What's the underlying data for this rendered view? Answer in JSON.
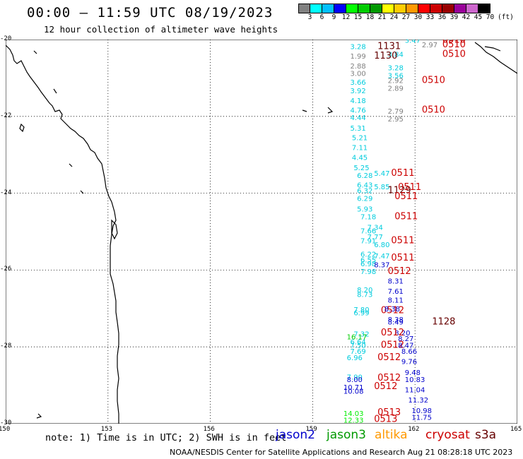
{
  "title": "00:00 – 11:59 UTC 08/19/2023",
  "subtitle": "12 hour collection of altimeter wave heights",
  "legend": {
    "colors": [
      "#808080",
      "#00ffff",
      "#00c0ff",
      "#0000ff",
      "#00ff00",
      "#00cc00",
      "#009900",
      "#ffff00",
      "#ffcc00",
      "#ff9900",
      "#ff0000",
      "#cc0000",
      "#990000",
      "#990099",
      "#cc66cc",
      "#000000"
    ],
    "labels": [
      "3",
      "6",
      "9",
      "12",
      "15",
      "18",
      "21",
      "24",
      "27",
      "30",
      "33",
      "36",
      "39",
      "42",
      "45",
      "70"
    ],
    "unit": "(ft)"
  },
  "axes": {
    "lat_labels": [
      "-20",
      "-22",
      "-24",
      "-26",
      "-28",
      "-30"
    ],
    "lon_labels": [
      "150",
      "153",
      "156",
      "159",
      "162",
      "165"
    ]
  },
  "footer": {
    "note": "note: 1) Time is in UTC; 2) SWH is in feet",
    "credit": "NOAA/NESDIS Center for Satellite Applications and Research   Aug 21 08:28:18 UTC 2023",
    "satellites": [
      {
        "name": "jason2",
        "color": "#0000cc"
      },
      {
        "name": "jason3",
        "color": "#009900"
      },
      {
        "name": "altika",
        "color": "#ff9900"
      },
      {
        "name": "cryosat",
        "color": "#cc0000"
      },
      {
        "name": "s3a",
        "color": "#660000"
      }
    ]
  },
  "chart_data": {
    "type": "scatter",
    "xlim": [
      150,
      165
    ],
    "ylim": [
      -30,
      -20
    ],
    "grid": true,
    "labels": [
      {
        "lon": 161.7,
        "lat": -20.08,
        "text": "3.47",
        "color": "#00ccdd"
      },
      {
        "lon": 162.2,
        "lat": -20.2,
        "text": "2.97",
        "color": "#808080"
      },
      {
        "lon": 162.8,
        "lat": -20.08,
        "text": "0510",
        "color": "#cc0000"
      },
      {
        "lon": 162.8,
        "lat": -20.2,
        "text": "0510",
        "color": "#cc0000"
      },
      {
        "lon": 160.1,
        "lat": -20.25,
        "text": "3.28",
        "color": "#00ccdd"
      },
      {
        "lon": 160.9,
        "lat": -20.25,
        "text": "1131",
        "color": "#660000"
      },
      {
        "lon": 161.2,
        "lat": -20.45,
        "text": "3.84",
        "color": "#00ccdd"
      },
      {
        "lon": 160.1,
        "lat": -20.5,
        "text": "1.99",
        "color": "#808080"
      },
      {
        "lon": 160.8,
        "lat": -20.5,
        "text": "1130",
        "color": "#660000"
      },
      {
        "lon": 162.8,
        "lat": -20.45,
        "text": "0510",
        "color": "#cc0000"
      },
      {
        "lon": 160.1,
        "lat": -20.75,
        "text": "2.88",
        "color": "#808080"
      },
      {
        "lon": 161.2,
        "lat": -20.8,
        "text": "3.28",
        "color": "#00ccdd"
      },
      {
        "lon": 160.1,
        "lat": -20.95,
        "text": "3.00",
        "color": "#808080"
      },
      {
        "lon": 161.2,
        "lat": -21.0,
        "text": "3.56",
        "color": "#00ccdd"
      },
      {
        "lon": 160.1,
        "lat": -21.18,
        "text": "3.66",
        "color": "#00ccdd"
      },
      {
        "lon": 161.2,
        "lat": -21.13,
        "text": "2.92",
        "color": "#808080"
      },
      {
        "lon": 162.2,
        "lat": -21.13,
        "text": "0510",
        "color": "#cc0000"
      },
      {
        "lon": 160.1,
        "lat": -21.4,
        "text": "3.92",
        "color": "#00ccdd"
      },
      {
        "lon": 161.2,
        "lat": -21.33,
        "text": "2.89",
        "color": "#808080"
      },
      {
        "lon": 160.1,
        "lat": -21.65,
        "text": "4.18",
        "color": "#00ccdd"
      },
      {
        "lon": 160.1,
        "lat": -21.9,
        "text": "4.76",
        "color": "#00ccdd"
      },
      {
        "lon": 161.2,
        "lat": -21.93,
        "text": "2.79",
        "color": "#808080"
      },
      {
        "lon": 162.2,
        "lat": -21.9,
        "text": "0510",
        "color": "#cc0000"
      },
      {
        "lon": 160.1,
        "lat": -22.1,
        "text": "4.44",
        "color": "#00ccdd"
      },
      {
        "lon": 161.2,
        "lat": -22.13,
        "text": "2.95",
        "color": "#808080"
      },
      {
        "lon": 160.1,
        "lat": -22.37,
        "text": "5.31",
        "color": "#00ccdd"
      },
      {
        "lon": 160.15,
        "lat": -22.62,
        "text": "5.21",
        "color": "#00ccdd"
      },
      {
        "lon": 160.15,
        "lat": -22.88,
        "text": "7.11",
        "color": "#00ccdd"
      },
      {
        "lon": 160.15,
        "lat": -23.13,
        "text": "4.45",
        "color": "#00ccdd"
      },
      {
        "lon": 160.2,
        "lat": -23.4,
        "text": "5.25",
        "color": "#00ccdd"
      },
      {
        "lon": 160.3,
        "lat": -23.6,
        "text": "6.28",
        "color": "#00ccdd"
      },
      {
        "lon": 160.8,
        "lat": -23.55,
        "text": "5.47",
        "color": "#00ccdd"
      },
      {
        "lon": 161.3,
        "lat": -23.55,
        "text": "0511",
        "color": "#cc0000"
      },
      {
        "lon": 160.3,
        "lat": -23.85,
        "text": "6.43",
        "color": "#00ccdd"
      },
      {
        "lon": 160.8,
        "lat": -23.9,
        "text": "5.85",
        "color": "#00ccdd"
      },
      {
        "lon": 160.3,
        "lat": -24.0,
        "text": "6.32",
        "color": "#00ccdd"
      },
      {
        "lon": 161.2,
        "lat": -24.0,
        "text": "1129",
        "color": "#660000"
      },
      {
        "lon": 161.5,
        "lat": -23.92,
        "text": "0511",
        "color": "#cc0000"
      },
      {
        "lon": 161.4,
        "lat": -24.15,
        "text": "0511",
        "color": "#cc0000"
      },
      {
        "lon": 160.3,
        "lat": -24.2,
        "text": "6.29",
        "color": "#00ccdd"
      },
      {
        "lon": 160.3,
        "lat": -24.48,
        "text": "5.93",
        "color": "#00ccdd"
      },
      {
        "lon": 160.4,
        "lat": -24.68,
        "text": "7.18",
        "color": "#00ccdd"
      },
      {
        "lon": 161.4,
        "lat": -24.68,
        "text": "0511",
        "color": "#cc0000"
      },
      {
        "lon": 160.6,
        "lat": -24.95,
        "text": "7.34",
        "color": "#00ccdd"
      },
      {
        "lon": 160.4,
        "lat": -25.05,
        "text": "7.66",
        "color": "#00ccdd"
      },
      {
        "lon": 160.6,
        "lat": -25.2,
        "text": "7.77",
        "color": "#00ccdd"
      },
      {
        "lon": 161.3,
        "lat": -25.3,
        "text": "0511",
        "color": "#cc0000"
      },
      {
        "lon": 160.4,
        "lat": -25.3,
        "text": "7.91",
        "color": "#00ccdd"
      },
      {
        "lon": 160.8,
        "lat": -25.4,
        "text": "6.80",
        "color": "#00ccdd"
      },
      {
        "lon": 160.4,
        "lat": -25.65,
        "text": "6.22",
        "color": "#00ccdd"
      },
      {
        "lon": 160.8,
        "lat": -25.7,
        "text": "7.47",
        "color": "#00ccdd"
      },
      {
        "lon": 160.4,
        "lat": -25.8,
        "text": "6.55",
        "color": "#00ccdd"
      },
      {
        "lon": 161.3,
        "lat": -25.75,
        "text": "0511",
        "color": "#cc0000"
      },
      {
        "lon": 160.4,
        "lat": -25.9,
        "text": "6.98",
        "color": "#00ccdd"
      },
      {
        "lon": 160.8,
        "lat": -25.93,
        "text": "8.37",
        "color": "#0000cc"
      },
      {
        "lon": 160.4,
        "lat": -26.1,
        "text": "7.98",
        "color": "#00ccdd"
      },
      {
        "lon": 161.2,
        "lat": -26.1,
        "text": "0512",
        "color": "#cc0000"
      },
      {
        "lon": 161.2,
        "lat": -26.35,
        "text": "8.31",
        "color": "#0000cc"
      },
      {
        "lon": 160.3,
        "lat": -26.58,
        "text": "8.20",
        "color": "#00ccdd"
      },
      {
        "lon": 161.2,
        "lat": -26.62,
        "text": "7.61",
        "color": "#0000cc"
      },
      {
        "lon": 160.3,
        "lat": -26.7,
        "text": "8.73",
        "color": "#00ccdd"
      },
      {
        "lon": 161.2,
        "lat": -26.85,
        "text": "8.11",
        "color": "#0000cc"
      },
      {
        "lon": 160.2,
        "lat": -27.1,
        "text": "7.80",
        "color": "#00ccdd"
      },
      {
        "lon": 160.2,
        "lat": -27.18,
        "text": "6.99",
        "color": "#00ccdd"
      },
      {
        "lon": 161.0,
        "lat": -27.12,
        "text": "0512",
        "color": "#cc0000"
      },
      {
        "lon": 161.1,
        "lat": -27.08,
        "text": "8.38",
        "color": "#0000cc"
      },
      {
        "lon": 161.2,
        "lat": -27.35,
        "text": "8.38",
        "color": "#0000cc"
      },
      {
        "lon": 161.2,
        "lat": -27.42,
        "text": "8.49",
        "color": "#0000cc"
      },
      {
        "lon": 162.5,
        "lat": -27.42,
        "text": "1128",
        "color": "#660000"
      },
      {
        "lon": 160.2,
        "lat": -27.73,
        "text": "7.32",
        "color": "#00ccdd"
      },
      {
        "lon": 161.4,
        "lat": -27.7,
        "text": "8.20",
        "color": "#0000cc"
      },
      {
        "lon": 160.0,
        "lat": -27.8,
        "text": "16.17",
        "color": "#00cc00"
      },
      {
        "lon": 161.0,
        "lat": -27.7,
        "text": "0512",
        "color": "#cc0000"
      },
      {
        "lon": 161.5,
        "lat": -27.85,
        "text": "8.27",
        "color": "#0000cc"
      },
      {
        "lon": 160.1,
        "lat": -27.93,
        "text": "6.64",
        "color": "#00ccdd"
      },
      {
        "lon": 160.1,
        "lat": -28.02,
        "text": "7.50",
        "color": "#00ccdd"
      },
      {
        "lon": 161.0,
        "lat": -28.02,
        "text": "0512",
        "color": "#cc0000"
      },
      {
        "lon": 161.5,
        "lat": -28.02,
        "text": "8.47",
        "color": "#0000cc"
      },
      {
        "lon": 160.1,
        "lat": -28.18,
        "text": "7.69",
        "color": "#00ccdd"
      },
      {
        "lon": 161.6,
        "lat": -28.18,
        "text": "8.66",
        "color": "#0000cc"
      },
      {
        "lon": 160.0,
        "lat": -28.35,
        "text": "6.96",
        "color": "#00ccdd"
      },
      {
        "lon": 160.9,
        "lat": -28.35,
        "text": "0512",
        "color": "#cc0000"
      },
      {
        "lon": 161.6,
        "lat": -28.45,
        "text": "9.76",
        "color": "#0000cc"
      },
      {
        "lon": 161.7,
        "lat": -28.73,
        "text": "9.48",
        "color": "#0000cc"
      },
      {
        "lon": 160.0,
        "lat": -28.85,
        "text": "7.90",
        "color": "#00ccdd"
      },
      {
        "lon": 160.0,
        "lat": -28.92,
        "text": "8.00",
        "color": "#0000cc"
      },
      {
        "lon": 160.9,
        "lat": -28.88,
        "text": "0512",
        "color": "#cc0000"
      },
      {
        "lon": 161.7,
        "lat": -28.92,
        "text": "10.83",
        "color": "#0000cc"
      },
      {
        "lon": 159.9,
        "lat": -29.12,
        "text": "10.71",
        "color": "#0000cc"
      },
      {
        "lon": 160.8,
        "lat": -29.1,
        "text": "0512",
        "color": "#cc0000"
      },
      {
        "lon": 159.9,
        "lat": -29.22,
        "text": "10.08",
        "color": "#0000cc"
      },
      {
        "lon": 161.7,
        "lat": -29.18,
        "text": "11.04",
        "color": "#0000cc"
      },
      {
        "lon": 161.8,
        "lat": -29.45,
        "text": "11.32",
        "color": "#0000cc"
      },
      {
        "lon": 161.9,
        "lat": -29.72,
        "text": "10.98",
        "color": "#0000cc"
      },
      {
        "lon": 159.9,
        "lat": -29.8,
        "text": "14.03",
        "color": "#00ee00"
      },
      {
        "lon": 160.9,
        "lat": -29.78,
        "text": "0513",
        "color": "#cc0000"
      },
      {
        "lon": 161.9,
        "lat": -29.9,
        "text": "11.75",
        "color": "#0000cc"
      },
      {
        "lon": 159.9,
        "lat": -29.97,
        "text": "12.33",
        "color": "#00ee00"
      },
      {
        "lon": 160.8,
        "lat": -29.95,
        "text": "0513",
        "color": "#cc0000"
      }
    ]
  }
}
